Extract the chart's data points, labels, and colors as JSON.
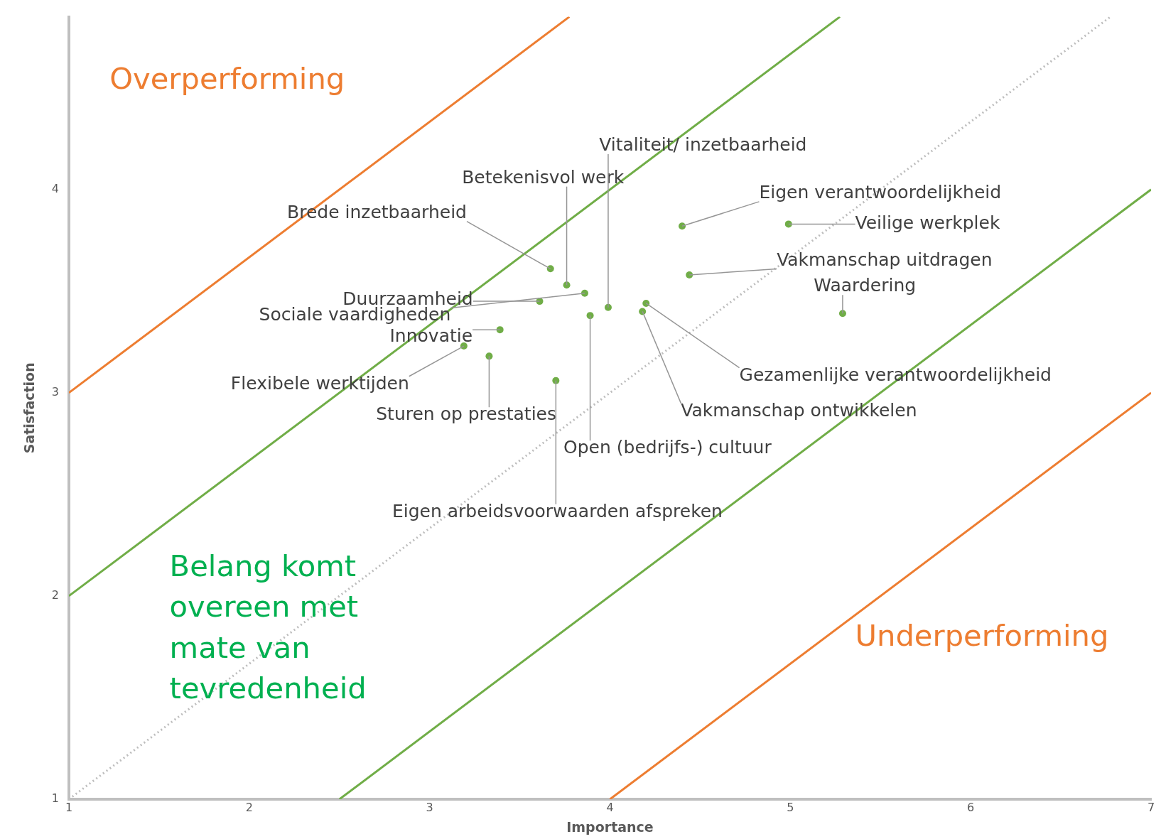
{
  "chart_data": {
    "type": "scatter",
    "xlabel": "Importance",
    "ylabel": "Satisfaction",
    "xlim": [
      1,
      7
    ],
    "ylim": [
      1,
      4.85
    ],
    "xticks": [
      1,
      2,
      3,
      4,
      5,
      6,
      7
    ],
    "yticks": [
      1,
      2,
      3,
      4
    ],
    "grid": false,
    "legend": false,
    "marker": "circle",
    "series": [
      {
        "type": "line",
        "color": "#ed7d31",
        "line_style": "solid",
        "marker": "none",
        "x": [
          1,
          3.775
        ],
        "values": [
          3,
          4.85
        ]
      },
      {
        "type": "line",
        "color": "#70ad47",
        "line_style": "solid",
        "marker": "none",
        "x": [
          1,
          5.275
        ],
        "values": [
          2,
          4.85
        ]
      },
      {
        "type": "line",
        "color": "#bdbdbd",
        "line_style": "dotted",
        "marker": "none",
        "x": [
          1,
          6.775
        ],
        "values": [
          1,
          4.85
        ]
      },
      {
        "type": "line",
        "color": "#70ad47",
        "line_style": "solid",
        "marker": "none",
        "x": [
          2.5,
          7
        ],
        "values": [
          1,
          4
        ]
      },
      {
        "type": "line",
        "color": "#ed7d31",
        "line_style": "solid",
        "marker": "none",
        "x": [
          4,
          7
        ],
        "values": [
          1,
          3
        ]
      },
      {
        "type": "scatter",
        "color": "#70ad47",
        "x": [
          3.67,
          3.76,
          3.61,
          3.86,
          3.99,
          3.89,
          3.39,
          3.19,
          3.33,
          3.7,
          4.4,
          4.99,
          4.44,
          4.2,
          4.18,
          5.29
        ],
        "values": [
          3.61,
          3.53,
          3.45,
          3.49,
          3.42,
          3.38,
          3.31,
          3.23,
          3.18,
          3.06,
          3.82,
          3.83,
          3.58,
          3.44,
          3.4,
          3.39
        ]
      }
    ],
    "annotations": [
      "Overperforming",
      "Belang komt overeen met mate van tevredenheid",
      "Underperforming",
      {
        "text": "Brede inzetbaarheid",
        "x": 3.67,
        "y": 3.61
      },
      {
        "text": "Betekenisvol werk",
        "x": 3.76,
        "y": 3.53
      },
      {
        "text": "Duurzaamheid",
        "x": 3.61,
        "y": 3.45
      },
      {
        "text": "Sociale vaardigheden",
        "x": 3.86,
        "y": 3.49
      },
      {
        "text": "Vitaliteit/ inzetbaarheid",
        "x": 3.99,
        "y": 3.42
      },
      {
        "text": "Open (bedrijfs-) cultuur",
        "x": 3.89,
        "y": 3.38
      },
      {
        "text": "Innovatie",
        "x": 3.39,
        "y": 3.31
      },
      {
        "text": "Flexibele werktijden",
        "x": 3.19,
        "y": 3.23
      },
      {
        "text": "Sturen op prestaties",
        "x": 3.33,
        "y": 3.18
      },
      {
        "text": "Eigen arbeidsvoorwaarden afspreken",
        "x": 3.7,
        "y": 3.06
      },
      {
        "text": "Eigen verantwoordelijkheid",
        "x": 4.4,
        "y": 3.82
      },
      {
        "text": "Veilige werkplek",
        "x": 4.99,
        "y": 3.83
      },
      {
        "text": "Vakmanschap uitdragen",
        "x": 4.44,
        "y": 3.58
      },
      {
        "text": "Gezamenlijke verantwoordelijkheid",
        "x": 4.2,
        "y": 3.44
      },
      {
        "text": "Vakmanschap ontwikkelen",
        "x": 4.18,
        "y": 3.4
      },
      {
        "text": "Waardering",
        "x": 5.29,
        "y": 3.39
      }
    ]
  }
}
